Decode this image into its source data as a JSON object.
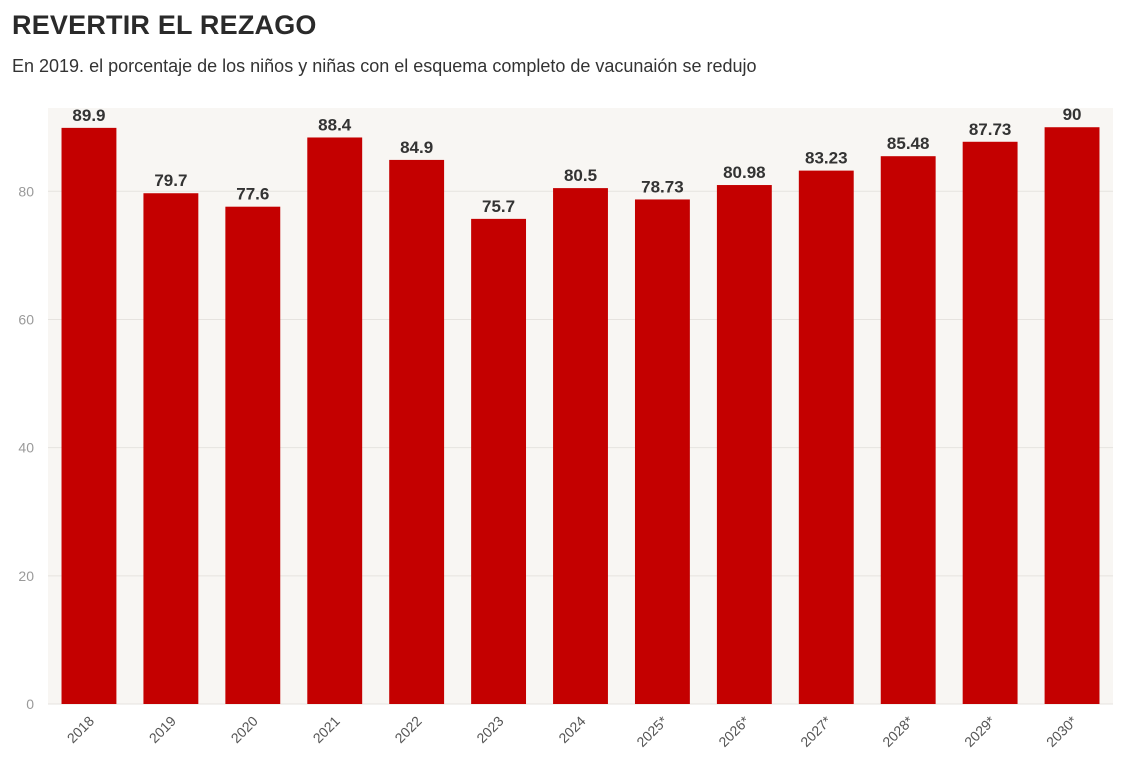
{
  "header": {
    "title": "REVERTIR EL REZAGO",
    "subtitle": "En 2019. el porcentaje de los niños y niñas con el esquema completo de vacunaión se redujo"
  },
  "chart_data": {
    "type": "bar",
    "categories": [
      "2018",
      "2019",
      "2020",
      "2021",
      "2022",
      "2023",
      "2024",
      "2025*",
      "2026*",
      "2027*",
      "2028*",
      "2029*",
      "2030*"
    ],
    "values": [
      89.9,
      79.7,
      77.6,
      88.4,
      84.9,
      75.7,
      80.5,
      78.73,
      80.98,
      83.23,
      85.48,
      87.73,
      90
    ],
    "data_labels": [
      "89.9",
      "79.7",
      "77.6",
      "88.4",
      "84.9",
      "75.7",
      "80.5",
      "78.73",
      "80.98",
      "83.23",
      "85.48",
      "87.73",
      "90"
    ],
    "ylim": [
      0,
      93
    ],
    "yticks": [
      0,
      20,
      40,
      60,
      80
    ],
    "xlabel": "",
    "ylabel": "",
    "grid": true,
    "colors": {
      "bar": "#c40000",
      "plot_bg": "#f8f6f3",
      "grid": "#e6e3df"
    }
  }
}
